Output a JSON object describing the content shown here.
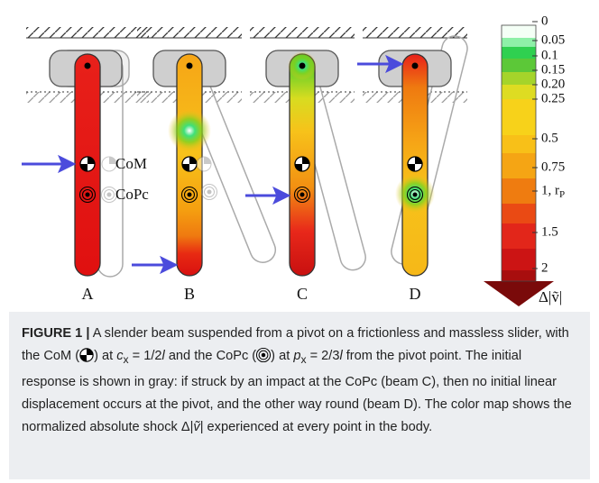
{
  "beams": [
    {
      "label": "A"
    },
    {
      "label": "B"
    },
    {
      "label": "C"
    },
    {
      "label": "D"
    }
  ],
  "annotations": {
    "com": "CoM",
    "copc": "CoPc"
  },
  "colorbar": {
    "ticks": [
      "0",
      "0.05",
      "0.1",
      "0.15",
      "0.20",
      "0.25",
      "0.5",
      "0.75",
      "1, r",
      "1.5",
      "2"
    ],
    "tick_subscript": "P",
    "label": "Δ|ṽ|"
  },
  "caption": {
    "segments": [
      "FIGURE 1 |",
      " A slender beam suspended from a pivot on a frictionless and massless slider, with the CoM (",
      ") at ",
      "c",
      "x",
      " = 1/2",
      "l",
      " and the CoPc (",
      ") at ",
      "p",
      "x",
      " = 2/3",
      "l",
      " from the pivot point. The initial response is shown in gray: if struck by an impact at the CoPc (beam C), then no initial linear displacement occurs at the pivot, and the other way round (beam D). The color map shows the normalized absolute shock Δ|",
      "ṽ",
      "| experienced at every point in the body."
    ]
  }
}
